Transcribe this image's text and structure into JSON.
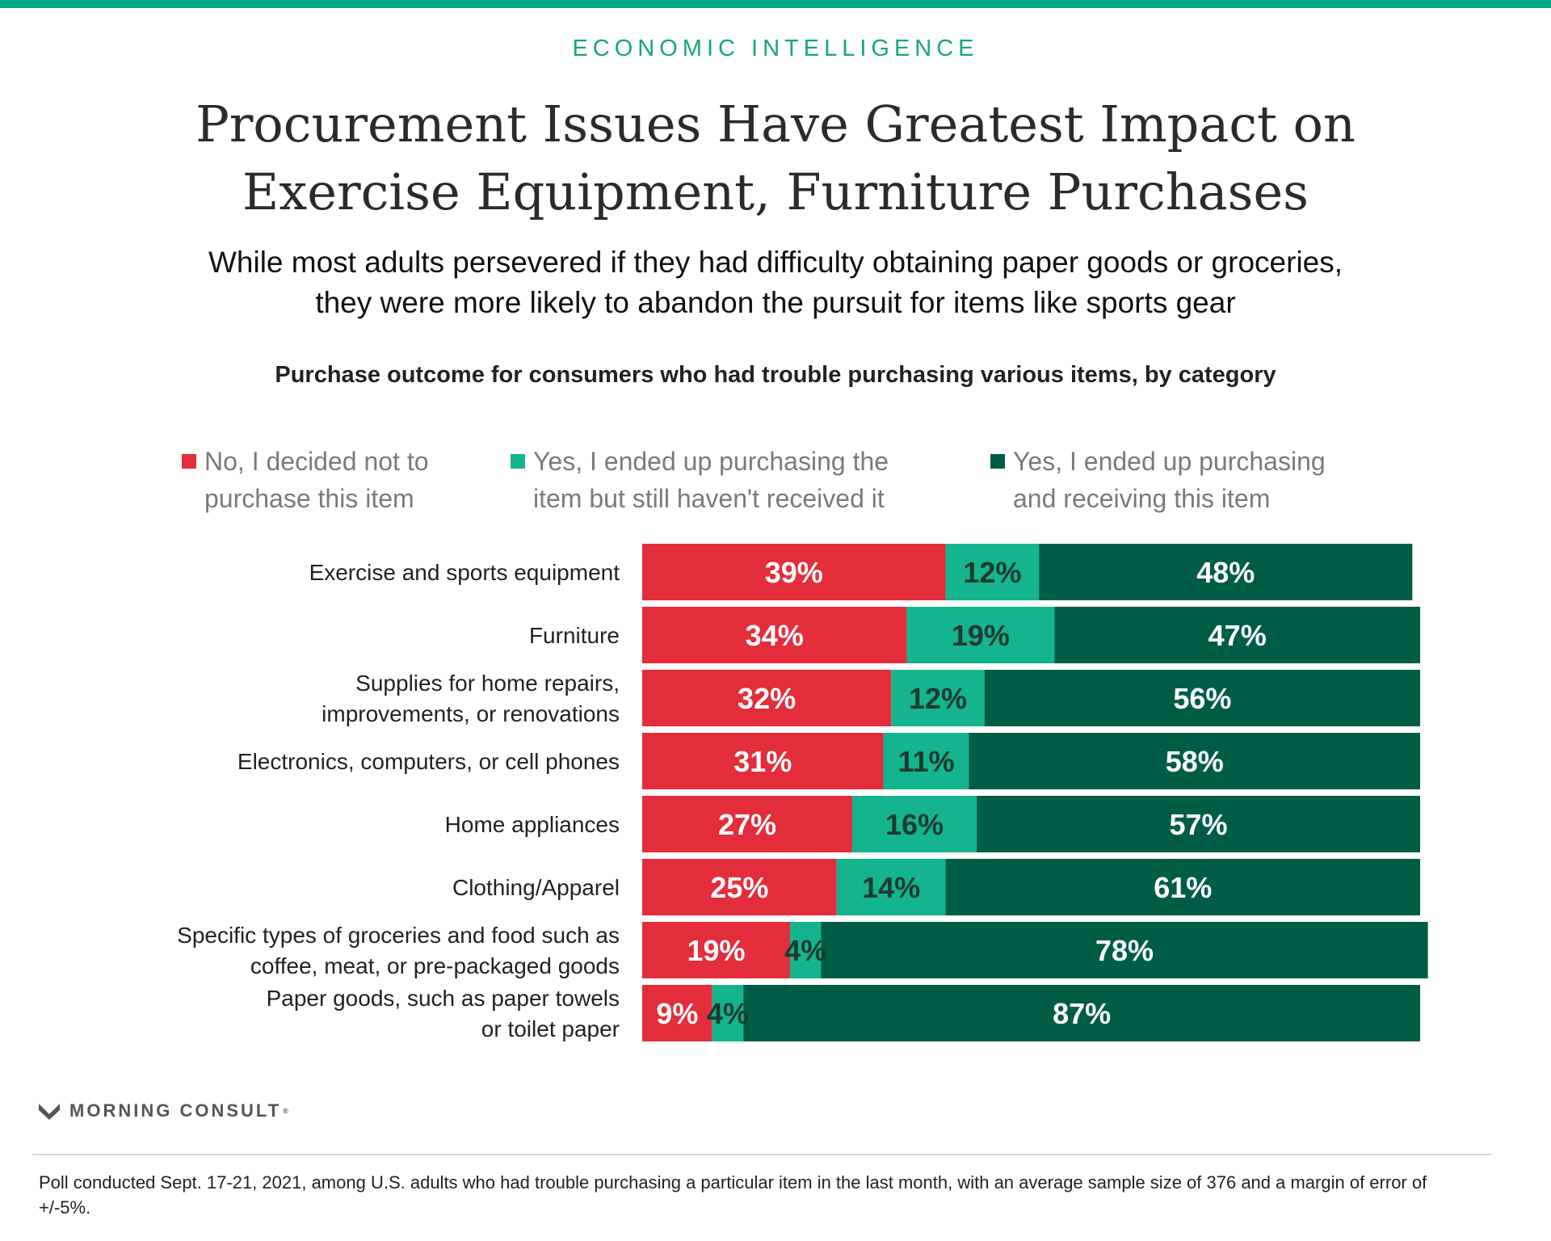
{
  "header": {
    "eyebrow": "ECONOMIC INTELLIGENCE",
    "title_line1": "Procurement Issues Have Greatest Impact on",
    "title_line2": "Exercise Equipment, Furniture Purchases",
    "subtitle_line1": "While most adults persevered if they had difficulty obtaining paper goods or groceries,",
    "subtitle_line2": "they were more likely to abandon the pursuit for items like sports gear",
    "accent_color": "#00A884"
  },
  "legend": [
    {
      "line1": "No, I decided not to",
      "line2": "purchase this item",
      "color": "#E32D3B"
    },
    {
      "line1": "Yes, I ended up purchasing the",
      "line2": "item but still haven't received it",
      "color": "#13B48E"
    },
    {
      "line1": "Yes, I ended up purchasing",
      "line2": "and receiving this item",
      "color": "#005D45"
    }
  ],
  "chart_data": {
    "type": "bar",
    "orientation": "horizontal",
    "stacked": true,
    "title": "Purchase outcome for consumers who had trouble purchasing various items, by category",
    "categories": [
      [
        "Exercise and sports equipment"
      ],
      [
        "Furniture"
      ],
      [
        "Supplies for home repairs,",
        "improvements, or renovations"
      ],
      [
        "Electronics, computers, or cell phones"
      ],
      [
        "Home appliances"
      ],
      [
        "Clothing/Apparel"
      ],
      [
        "Specific types of groceries and food such as",
        "coffee, meat, or pre-packaged goods"
      ],
      [
        "Paper goods, such as paper towels",
        "or toilet paper"
      ]
    ],
    "series": [
      {
        "name": "No, I decided not to purchase this item",
        "color": "#E32D3B",
        "label_color": "#ffffff",
        "values": [
          39,
          34,
          32,
          31,
          27,
          25,
          19,
          9
        ]
      },
      {
        "name": "Yes, I ended up purchasing the item but still haven't received it",
        "color": "#13B48E",
        "label_color": "#1d3a30",
        "values": [
          12,
          19,
          12,
          11,
          16,
          14,
          4,
          4
        ]
      },
      {
        "name": "Yes, I ended up purchasing and receiving this item",
        "color": "#005D45",
        "label_color": "#ffffff",
        "values": [
          48,
          47,
          56,
          58,
          57,
          61,
          78,
          87
        ]
      }
    ],
    "value_suffix": "%",
    "xlim": [
      0,
      100
    ]
  },
  "footer": {
    "brand": "MORNING CONSULT",
    "brand_mark": "®",
    "note": "Poll conducted Sept. 17-21, 2021, among U.S. adults who had trouble purchasing a particular item in the last month, with an average sample size of 376 and a margin of error of +/-5%."
  }
}
